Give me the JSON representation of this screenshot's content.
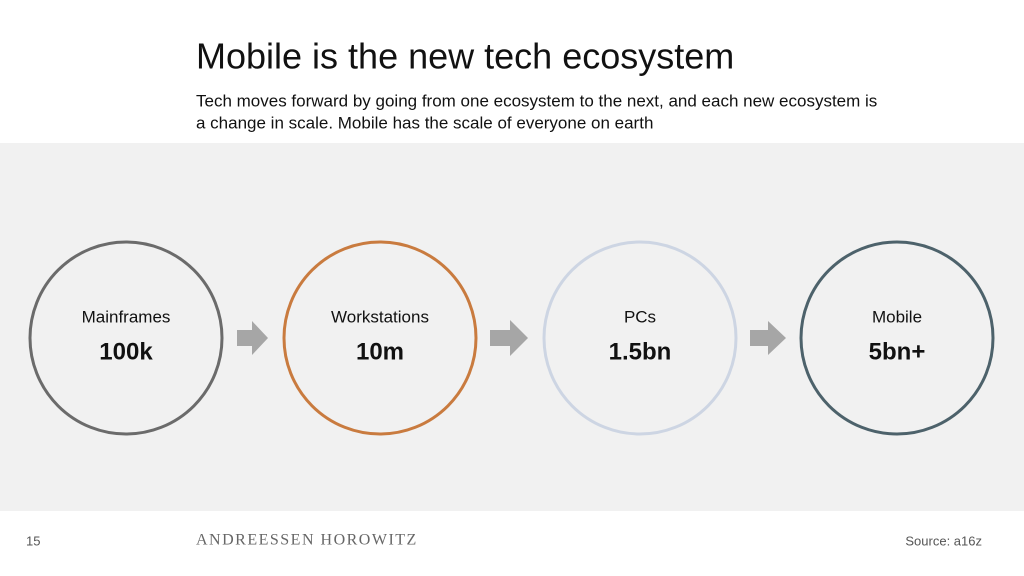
{
  "header": {
    "title": "Mobile is the new tech ecosystem",
    "subtitle": [
      "Tech moves forward by going from one ecosystem to the next, and each new ecosystem is",
      "a change in scale. Mobile  has the scale of everyone on earth"
    ]
  },
  "nodes": [
    {
      "label": "Mainframes",
      "value": "100k",
      "color": "#6b6b6b"
    },
    {
      "label": "Workstations",
      "value": "10m",
      "color": "#c97b3f"
    },
    {
      "label": "PCs",
      "value": "1.5bn",
      "color": "#cdd5e3"
    },
    {
      "label": "Mobile",
      "value": "5bn+",
      "color": "#4d626b"
    }
  ],
  "footer": {
    "page": "15",
    "brand": "ANDREESSEN  HOROWITZ",
    "source": "Source: a16z"
  }
}
